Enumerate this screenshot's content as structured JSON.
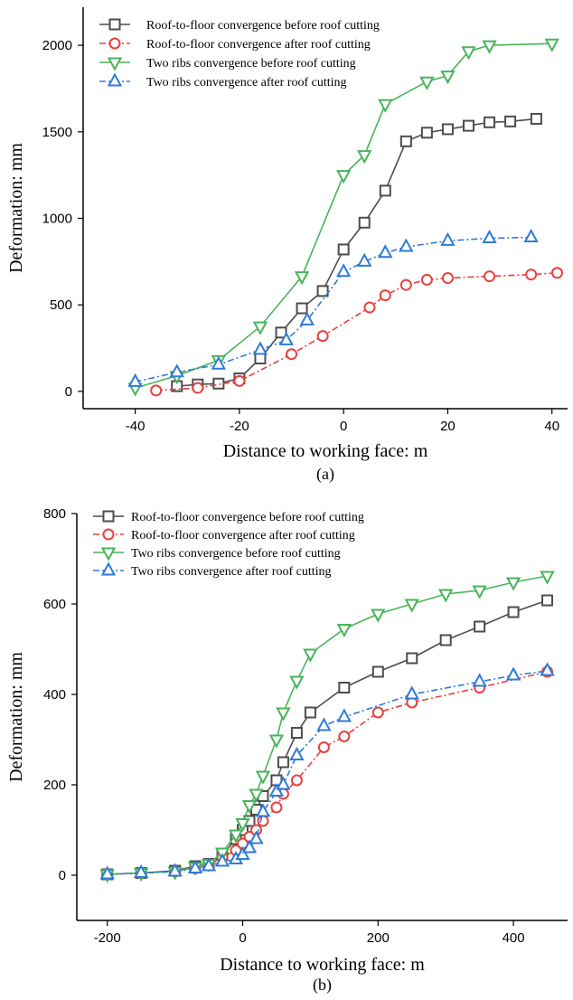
{
  "chart_data": [
    {
      "type": "line",
      "panel_label": "(a)",
      "xlabel": "Distance to working face: m",
      "ylabel": "Deformation: mm",
      "xlim": [
        -50,
        43
      ],
      "ylim": [
        -100,
        2220
      ],
      "xticks": [
        -40,
        -20,
        0,
        20,
        40
      ],
      "yticks": [
        0,
        500,
        1000,
        1500,
        2000
      ],
      "xtick_labels": [
        "-40",
        "-20",
        "0",
        "20",
        "40"
      ],
      "ytick_labels": [
        "0",
        "500",
        "1000",
        "1500",
        "2000"
      ],
      "grid": false,
      "legend_position": "top-left",
      "series": [
        {
          "name": "Roof-to-floor convergence before roof cutting",
          "color": "#4d4d4d",
          "marker": "square",
          "line_style": "solid",
          "x": [
            -32,
            -28,
            -24,
            -20,
            -16,
            -12,
            -8,
            -4,
            0,
            4,
            8,
            12,
            16,
            20,
            24,
            28,
            32,
            37
          ],
          "y": [
            30,
            40,
            45,
            75,
            190,
            340,
            480,
            580,
            820,
            975,
            1160,
            1445,
            1495,
            1515,
            1535,
            1555,
            1560,
            1575
          ]
        },
        {
          "name": "Roof-to-floor convergence after roof cutting",
          "color": "#e8413e",
          "marker": "circle",
          "line_style": "dashdot",
          "x": [
            -36,
            -28,
            -20,
            -10,
            -4,
            5,
            8,
            12,
            16,
            20,
            28,
            36,
            41
          ],
          "y": [
            5,
            20,
            60,
            215,
            320,
            485,
            555,
            615,
            645,
            655,
            665,
            675,
            685
          ]
        },
        {
          "name": "Two ribs convergence before roof cutting",
          "color": "#48b45a",
          "marker": "triangle-down",
          "line_style": "solid",
          "x": [
            -40,
            -32,
            -24,
            -16,
            -8,
            0,
            4,
            8,
            16,
            20,
            24,
            28,
            40
          ],
          "y": [
            20,
            90,
            180,
            375,
            665,
            1250,
            1365,
            1660,
            1790,
            1825,
            1965,
            2000,
            2010
          ]
        },
        {
          "name": "Two ribs convergence after roof cutting",
          "color": "#2f7bd6",
          "marker": "triangle-up",
          "line_style": "dashdot",
          "x": [
            -40,
            -32,
            -24,
            -16,
            -11,
            -7,
            0,
            4,
            8,
            12,
            20,
            28,
            36
          ],
          "y": [
            55,
            110,
            155,
            240,
            295,
            410,
            690,
            750,
            800,
            835,
            870,
            885,
            890
          ]
        }
      ]
    },
    {
      "type": "line",
      "panel_label": "(b)",
      "xlabel": "Distance to working face: m",
      "ylabel": "Deformation: mm",
      "xlim": [
        -245,
        480
      ],
      "ylim": [
        -100,
        800
      ],
      "xticks": [
        -200,
        0,
        200,
        400
      ],
      "yticks": [
        0,
        200,
        400,
        600,
        800
      ],
      "xtick_labels": [
        "-200",
        "0",
        "200",
        "400"
      ],
      "ytick_labels": [
        "0",
        "200",
        "400",
        "600",
        "800"
      ],
      "grid": false,
      "legend_position": "top-left",
      "series": [
        {
          "name": "Roof-to-floor convergence before roof cutting",
          "color": "#4d4d4d",
          "marker": "square",
          "line_style": "solid",
          "x": [
            -200,
            -150,
            -100,
            -70,
            -50,
            -30,
            -10,
            0,
            10,
            20,
            30,
            50,
            60,
            80,
            100,
            150,
            200,
            250,
            300,
            350,
            400,
            450
          ],
          "y": [
            2,
            5,
            10,
            20,
            25,
            45,
            80,
            100,
            120,
            145,
            175,
            210,
            250,
            315,
            360,
            415,
            450,
            480,
            520,
            550,
            582,
            608
          ]
        },
        {
          "name": "Roof-to-floor convergence after roof cutting",
          "color": "#e8413e",
          "marker": "circle",
          "line_style": "dashdot",
          "x": [
            -200,
            -150,
            -100,
            -70,
            -50,
            -30,
            -10,
            0,
            10,
            20,
            30,
            50,
            60,
            80,
            120,
            150,
            200,
            250,
            350,
            450
          ],
          "y": [
            2,
            5,
            8,
            15,
            22,
            40,
            55,
            70,
            85,
            100,
            120,
            150,
            180,
            210,
            283,
            307,
            360,
            382,
            415,
            450
          ]
        },
        {
          "name": "Two ribs convergence before roof cutting",
          "color": "#48b45a",
          "marker": "triangle-down",
          "line_style": "solid",
          "x": [
            -200,
            -150,
            -100,
            -70,
            -50,
            -30,
            -10,
            0,
            10,
            20,
            30,
            50,
            60,
            80,
            100,
            150,
            200,
            250,
            300,
            350,
            400,
            450
          ],
          "y": [
            2,
            5,
            8,
            18,
            25,
            50,
            90,
            115,
            155,
            180,
            220,
            300,
            360,
            430,
            490,
            545,
            578,
            600,
            622,
            630,
            648,
            662
          ]
        },
        {
          "name": "Two ribs convergence after roof cutting",
          "color": "#2f7bd6",
          "marker": "triangle-up",
          "line_style": "dashdot",
          "x": [
            -200,
            -150,
            -100,
            -70,
            -50,
            -30,
            -10,
            0,
            10,
            20,
            30,
            50,
            60,
            80,
            120,
            150,
            250,
            350,
            400,
            450
          ],
          "y": [
            2,
            5,
            8,
            15,
            20,
            30,
            35,
            45,
            60,
            80,
            140,
            185,
            200,
            265,
            330,
            350,
            400,
            428,
            442,
            452
          ]
        }
      ]
    }
  ]
}
